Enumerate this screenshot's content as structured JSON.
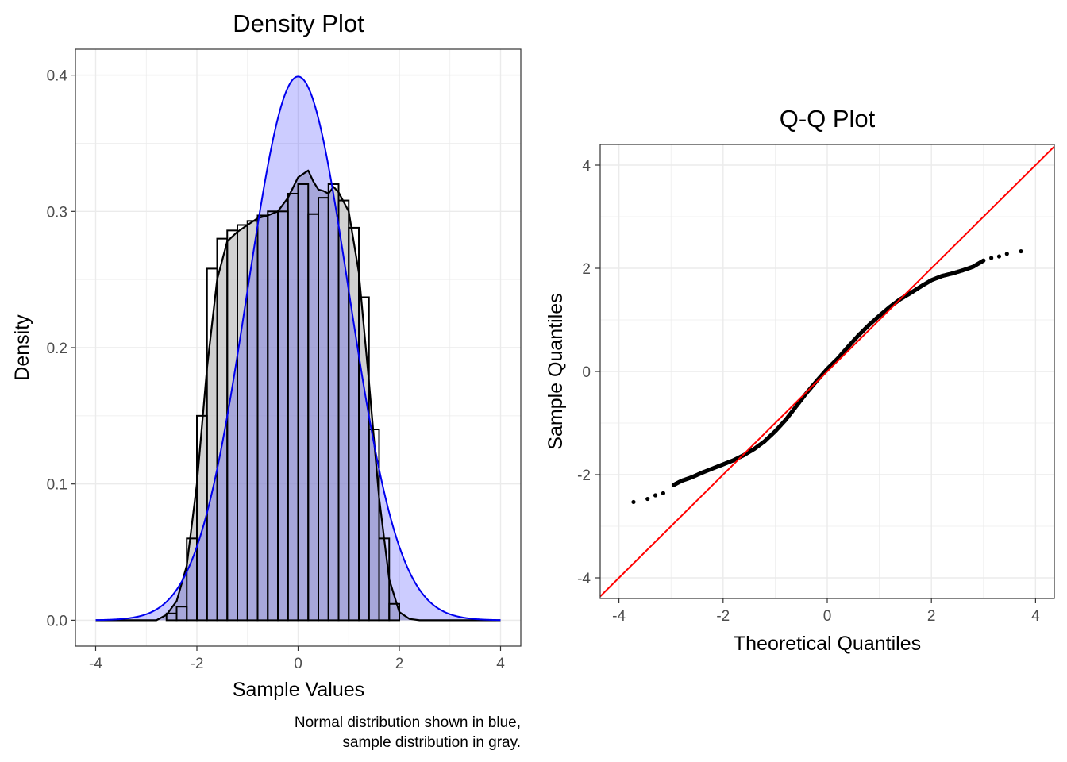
{
  "chart_data": [
    {
      "type": "bar",
      "title": "Density Plot",
      "xlabel": "Sample Values",
      "ylabel": "Density",
      "caption_lines": [
        "Normal distribution shown in blue,",
        "sample distribution in gray."
      ],
      "xlim": [
        -4.4,
        4.4
      ],
      "ylim": [
        -0.019,
        0.419
      ],
      "x_ticks": [
        -4,
        -2,
        0,
        2,
        4
      ],
      "x_tick_labels": [
        "-4",
        "-2",
        "0",
        "2",
        "4"
      ],
      "y_ticks": [
        0.0,
        0.1,
        0.2,
        0.3,
        0.4
      ],
      "y_tick_labels": [
        "0.0",
        "0.1",
        "0.2",
        "0.3",
        "0.4"
      ],
      "grid": true,
      "histogram": {
        "bin_width": 0.2,
        "bins_left": [
          -2.6,
          -2.4,
          -2.2,
          -2.0,
          -1.8,
          -1.6,
          -1.4,
          -1.2,
          -1.0,
          -0.8,
          -0.6,
          -0.4,
          -0.2,
          0.0,
          0.2,
          0.4,
          0.6,
          0.8,
          1.0,
          1.2,
          1.4,
          1.6,
          1.8,
          2.0,
          2.2
        ],
        "density": [
          0.005,
          0.01,
          0.06,
          0.15,
          0.258,
          0.28,
          0.286,
          0.29,
          0.293,
          0.297,
          0.3,
          0.3,
          0.313,
          0.32,
          0.298,
          0.31,
          0.32,
          0.308,
          0.288,
          0.237,
          0.14,
          0.06,
          0.012,
          0.0,
          0.0
        ]
      },
      "sample_density_curve": {
        "x": [
          -4.0,
          -2.8,
          -2.6,
          -2.4,
          -2.2,
          -2.0,
          -1.8,
          -1.6,
          -1.4,
          -1.2,
          -1.0,
          -0.8,
          -0.6,
          -0.4,
          -0.2,
          0.0,
          0.2,
          0.3,
          0.4,
          0.5,
          0.6,
          0.7,
          0.8,
          1.0,
          1.2,
          1.4,
          1.6,
          1.8,
          2.0,
          2.2,
          2.4,
          4.0
        ],
        "y": [
          0.0,
          0.0,
          0.004,
          0.014,
          0.04,
          0.1,
          0.185,
          0.25,
          0.278,
          0.285,
          0.29,
          0.295,
          0.297,
          0.3,
          0.31,
          0.325,
          0.33,
          0.322,
          0.316,
          0.315,
          0.313,
          0.318,
          0.314,
          0.3,
          0.255,
          0.175,
          0.09,
          0.03,
          0.006,
          0.001,
          0.0,
          0.0
        ]
      },
      "normal_curve": {
        "mean": 0,
        "sd": 1,
        "x_range": [
          -4,
          4
        ]
      },
      "colors": {
        "normal_line": "#0000ee",
        "normal_fill": "#0000ff",
        "sample_fill": "#bebebe",
        "bar_outline": "#000000",
        "grid": "#ebebeb",
        "panel_border": "#333333"
      }
    },
    {
      "type": "scatter",
      "title": "Q-Q Plot",
      "xlabel": "Theoretical Quantiles",
      "ylabel": "Sample Quantiles",
      "xlim": [
        -4.36,
        4.36
      ],
      "ylim": [
        -4.4,
        4.4
      ],
      "x_ticks": [
        -4,
        -2,
        0,
        2,
        4
      ],
      "x_tick_labels": [
        "-4",
        "-2",
        "0",
        "2",
        "4"
      ],
      "y_ticks": [
        -4,
        -2,
        0,
        2,
        4
      ],
      "y_tick_labels": [
        "-4",
        "-2",
        "0",
        "2",
        "4"
      ],
      "grid": true,
      "reference_line": {
        "slope": 1,
        "intercept": 0,
        "color": "#ff0000"
      },
      "points": {
        "x": [
          -3.72,
          -3.45,
          -3.3,
          -3.15,
          -2.95,
          -2.8,
          -2.6,
          -2.4,
          -2.2,
          -2.0,
          -1.8,
          -1.6,
          -1.4,
          -1.2,
          -1.0,
          -0.8,
          -0.6,
          -0.4,
          -0.2,
          0.0,
          0.2,
          0.4,
          0.6,
          0.8,
          1.0,
          1.2,
          1.4,
          1.6,
          1.8,
          2.0,
          2.2,
          2.4,
          2.6,
          2.8,
          3.0,
          3.15,
          3.3,
          3.45,
          3.72
        ],
        "y": [
          -2.53,
          -2.47,
          -2.4,
          -2.36,
          -2.2,
          -2.12,
          -2.05,
          -1.96,
          -1.88,
          -1.8,
          -1.72,
          -1.62,
          -1.5,
          -1.35,
          -1.16,
          -0.94,
          -0.68,
          -0.42,
          -0.18,
          0.05,
          0.25,
          0.48,
          0.7,
          0.9,
          1.08,
          1.25,
          1.4,
          1.52,
          1.65,
          1.77,
          1.85,
          1.9,
          1.96,
          2.03,
          2.15,
          2.2,
          2.23,
          2.28,
          2.33
        ],
        "color": "#000000"
      },
      "colors": {
        "grid": "#ebebeb",
        "panel_border": "#333333"
      }
    }
  ]
}
